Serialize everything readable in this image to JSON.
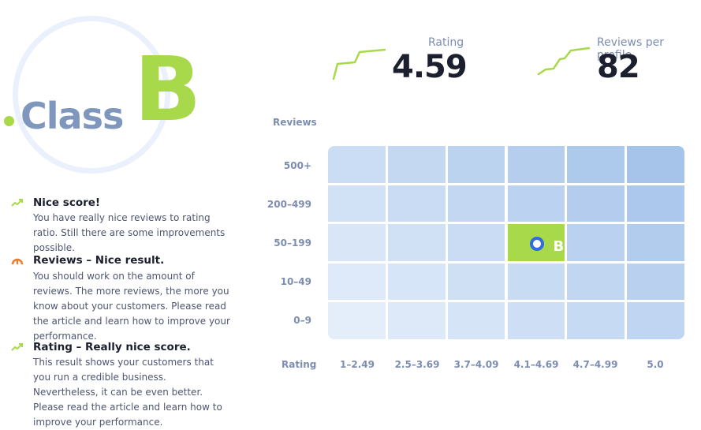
{
  "classification": {
    "word": "Class",
    "letter": "B"
  },
  "metrics": {
    "rating": {
      "label": "Rating",
      "value": "4.59"
    },
    "reviews_per_profile": {
      "label": "Reviews per profile",
      "value": "82"
    }
  },
  "summary": [
    {
      "icon": "trend-up-icon",
      "title": "Nice score!",
      "body": "You have really nice reviews to rating ratio. Still there are some improvements possible."
    },
    {
      "icon": "gauge-icon",
      "title": "Reviews – Nice result.",
      "body": "You should work on the amount of reviews. The more reviews, the more you know about your customers. Please read the article and learn how to improve your performance."
    },
    {
      "icon": "trend-up-icon",
      "title": "Rating – Really nice score.",
      "body": "This result shows your customers that you run a credible business. Nevertheless, it can be even better. Please read the article and learn how to improve your performance."
    }
  ],
  "grid": {
    "y_title": "Reviews",
    "x_title": "Rating",
    "rows": [
      "500+",
      "200–499",
      "50–199",
      "10–49",
      "0–9"
    ],
    "cols": [
      "1–2.49",
      "2.5–3.69",
      "3.7–4.09",
      "4.1–4.69",
      "4.7–4.99",
      "5.0"
    ],
    "active_row": 2,
    "active_col": 3,
    "active_label": "B"
  },
  "colors": {
    "accent_green": "#a8d94a",
    "muted_blue": "#7f97bd",
    "marker_blue": "#2f6de0",
    "gauge_orange": "#f07a28"
  }
}
